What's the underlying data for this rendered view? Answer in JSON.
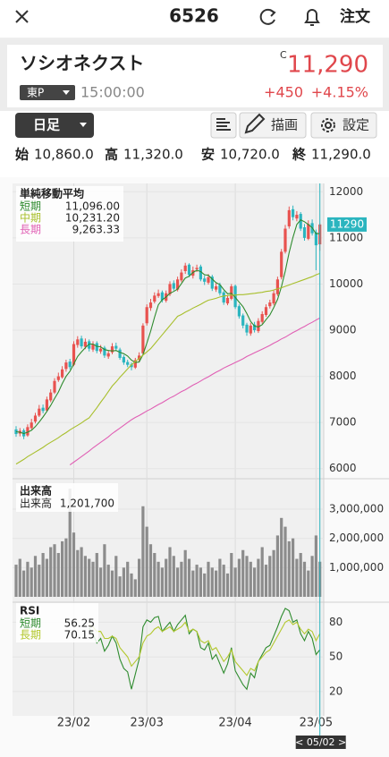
{
  "header": {
    "title": "6526",
    "order": "注文"
  },
  "quote": {
    "name": "ソシオネクスト",
    "flag": "C",
    "price": "11,290",
    "market": "東P",
    "time": "15:00:00",
    "change": "+450",
    "change_pct": "+4.15%"
  },
  "toolbar": {
    "period": "日足",
    "draw": "描画",
    "settings": "設定"
  },
  "ohlc": [
    {
      "label": "始",
      "value": "10,860.0"
    },
    {
      "label": "高",
      "value": "11,320.0"
    },
    {
      "label": "安",
      "value": "10,720.0"
    },
    {
      "label": "終",
      "value": "11,290.0"
    }
  ],
  "chart_data": [
    {
      "type": "candlestick",
      "title": "単純移動平均",
      "cursor_label": "< 05/02 >",
      "up_color": "#e8524f",
      "down_color": "#2bb5bf",
      "marker_color": "#2bb5bf",
      "categories": [
        null,
        null,
        null,
        null,
        null,
        null,
        null,
        null,
        null,
        null,
        null,
        null,
        null,
        null,
        null,
        "23/02",
        null,
        null,
        null,
        null,
        null,
        null,
        null,
        null,
        null,
        null,
        null,
        null,
        null,
        null,
        null,
        null,
        null,
        null,
        "23/03",
        null,
        null,
        null,
        null,
        null,
        null,
        null,
        null,
        null,
        null,
        null,
        null,
        null,
        null,
        null,
        null,
        null,
        null,
        null,
        null,
        null,
        null,
        "23/04",
        null,
        null,
        null,
        null,
        null,
        null,
        null,
        null,
        null,
        null,
        null,
        null,
        null,
        null,
        null,
        null,
        null,
        null,
        null,
        null,
        "23/05",
        null
      ],
      "open": [
        6850,
        6760,
        6830,
        6720,
        6880,
        7020,
        7150,
        7320,
        7260,
        7480,
        7650,
        7920,
        7980,
        8160,
        8320,
        8250,
        8680,
        8820,
        8640,
        8760,
        8580,
        8720,
        8540,
        8620,
        8430,
        8520,
        8660,
        8580,
        8420,
        8310,
        8260,
        8190,
        8360,
        8500,
        9150,
        9480,
        9620,
        9740,
        9820,
        9640,
        9780,
        10020,
        9880,
        10080,
        10280,
        10420,
        10180,
        10320,
        10380,
        10120,
        10030,
        10160,
        9880,
        9980,
        9820,
        9580,
        9680,
        9960,
        9520,
        9320,
        9120,
        8930,
        9120,
        8980,
        9180,
        9330,
        9520,
        9580,
        9780,
        10150,
        10700,
        11250,
        11620,
        11420,
        11520,
        11230,
        10980,
        11320,
        11120,
        10860
      ],
      "high": [
        6920,
        6880,
        6870,
        6960,
        7080,
        7210,
        7380,
        7390,
        7560,
        7720,
        7960,
        8080,
        8220,
        8360,
        8380,
        8760,
        8870,
        8880,
        8820,
        8800,
        8760,
        8760,
        8680,
        8660,
        8570,
        8720,
        8730,
        8620,
        8460,
        8360,
        8300,
        8400,
        8520,
        9150,
        9560,
        9680,
        9820,
        9880,
        9860,
        9860,
        10060,
        10080,
        10160,
        10320,
        10460,
        10450,
        10380,
        10420,
        10420,
        10180,
        10220,
        10200,
        10020,
        10030,
        9850,
        9760,
        10000,
        9990,
        9560,
        9360,
        9160,
        9160,
        9180,
        9260,
        9410,
        9560,
        9660,
        9860,
        10160,
        10760,
        11280,
        11680,
        11700,
        11580,
        11560,
        11300,
        11380,
        11400,
        11180,
        11320
      ],
      "low": [
        6690,
        6700,
        6640,
        6690,
        6850,
        6980,
        7120,
        7200,
        7230,
        7440,
        7620,
        7880,
        7950,
        8100,
        8150,
        8220,
        8620,
        8600,
        8590,
        8540,
        8530,
        8500,
        8490,
        8400,
        8380,
        8480,
        8550,
        8360,
        8250,
        8200,
        8130,
        8160,
        8320,
        8480,
        9100,
        9420,
        9580,
        9700,
        9600,
        9600,
        9740,
        9860,
        9840,
        10040,
        10220,
        10150,
        10120,
        10260,
        10060,
        9980,
        9990,
        9850,
        9830,
        9750,
        9550,
        9540,
        9650,
        9460,
        9250,
        9040,
        8880,
        8880,
        8950,
        8940,
        9140,
        9290,
        9470,
        9540,
        9740,
        10100,
        10660,
        11200,
        11380,
        11360,
        11150,
        10940,
        10950,
        11050,
        10300,
        10720
      ],
      "close": [
        6750,
        6820,
        6700,
        6900,
        7000,
        7150,
        7300,
        7250,
        7500,
        7650,
        7900,
        8000,
        8150,
        8300,
        8200,
        8700,
        8800,
        8650,
        8750,
        8600,
        8700,
        8550,
        8600,
        8450,
        8500,
        8650,
        8600,
        8400,
        8300,
        8250,
        8200,
        8350,
        8450,
        9100,
        9500,
        9600,
        9750,
        9800,
        9650,
        9800,
        10000,
        9900,
        10100,
        10250,
        10400,
        10200,
        10300,
        10350,
        10100,
        10050,
        10150,
        9900,
        9950,
        9800,
        9600,
        9700,
        9950,
        9500,
        9300,
        9100,
        8950,
        9100,
        9000,
        9200,
        9350,
        9500,
        9600,
        9800,
        10100,
        10700,
        11200,
        11600,
        11450,
        11500,
        11200,
        11000,
        11300,
        11100,
        10840,
        11290
      ],
      "series": [
        {
          "name": "短期",
          "color": "#2e8b2e",
          "legend_label": "11,096.00",
          "values": [
            6800,
            6790,
            6760,
            6790,
            6830,
            6910,
            7010,
            7120,
            7240,
            7370,
            7520,
            7660,
            7840,
            8000,
            8110,
            8270,
            8430,
            8530,
            8620,
            8700,
            8700,
            8650,
            8640,
            8580,
            8560,
            8550,
            8560,
            8520,
            8490,
            8440,
            8350,
            8300,
            8310,
            8470,
            8720,
            8980,
            9280,
            9550,
            9660,
            9720,
            9800,
            9840,
            9890,
            10010,
            10130,
            10170,
            10250,
            10300,
            10270,
            10200,
            10190,
            10110,
            10030,
            9990,
            9880,
            9790,
            9800,
            9710,
            9610,
            9510,
            9360,
            9190,
            9090,
            9070,
            9120,
            9230,
            9330,
            9490,
            9670,
            9940,
            10280,
            10680,
            11010,
            11290,
            11390,
            11350,
            11290,
            11220,
            11090,
            11096
          ]
        },
        {
          "name": "中期",
          "color": "#a8bf2c",
          "legend_label": "10,231.20",
          "values": [
            6100,
            6150,
            6200,
            6260,
            6310,
            6360,
            6410,
            6460,
            6520,
            6570,
            6620,
            6670,
            6730,
            6780,
            6840,
            6890,
            6940,
            6990,
            7050,
            7100,
            7210,
            7320,
            7440,
            7550,
            7670,
            7790,
            7880,
            7980,
            8070,
            8160,
            8250,
            8320,
            8390,
            8460,
            8530,
            8600,
            8700,
            8800,
            8900,
            9000,
            9100,
            9200,
            9300,
            9340,
            9390,
            9430,
            9480,
            9520,
            9560,
            9610,
            9650,
            9670,
            9690,
            9720,
            9740,
            9750,
            9760,
            9760,
            9770,
            9770,
            9780,
            9790,
            9800,
            9810,
            9820,
            9840,
            9850,
            9870,
            9900,
            9920,
            9950,
            9980,
            10010,
            10040,
            10070,
            10100,
            10130,
            10160,
            10200,
            10231.2
          ]
        },
        {
          "name": "長期",
          "color": "#e05fb4",
          "legend_label": "9,263.33",
          "values": [
            null,
            null,
            null,
            null,
            null,
            null,
            null,
            null,
            null,
            null,
            null,
            null,
            null,
            null,
            6080,
            6140,
            6200,
            6260,
            6320,
            6380,
            6450,
            6510,
            6570,
            6630,
            6690,
            6760,
            6820,
            6880,
            6940,
            7000,
            7060,
            7110,
            7150,
            7200,
            7250,
            7290,
            7340,
            7390,
            7430,
            7480,
            7530,
            7570,
            7620,
            7670,
            7710,
            7760,
            7810,
            7850,
            7900,
            7950,
            7990,
            8040,
            8090,
            8130,
            8180,
            8220,
            8260,
            8300,
            8340,
            8380,
            8430,
            8470,
            8510,
            8550,
            8590,
            8630,
            8670,
            8720,
            8760,
            8810,
            8850,
            8900,
            8950,
            8990,
            9040,
            9080,
            9130,
            9170,
            9220,
            9263.33
          ]
        }
      ],
      "ylim": [
        5840,
        12180
      ],
      "yticks": [
        6000,
        7000,
        8000,
        9000,
        10000,
        11000,
        12000
      ]
    },
    {
      "type": "bar",
      "title": "出来高",
      "series": [
        {
          "name": "出来高",
          "color": "#8c8c8c",
          "legend_label": "1,201,700",
          "values": [
            1100000,
            1300000,
            900000,
            1200000,
            1000000,
            1400000,
            1100000,
            1500000,
            1300000,
            1700000,
            1800000,
            1500000,
            1900000,
            2000000,
            3700000,
            2200000,
            1600000,
            1700000,
            1400000,
            1300000,
            1200000,
            1500000,
            1000000,
            1800000,
            1100000,
            900000,
            1400000,
            700000,
            1000000,
            1200000,
            800000,
            600000,
            1300000,
            3100000,
            2400000,
            1800000,
            1500000,
            1200000,
            1000000,
            1300000,
            1700000,
            1400000,
            1000000,
            1200000,
            1600000,
            1300000,
            900000,
            1100000,
            1000000,
            800000,
            1200000,
            1000000,
            900000,
            1300000,
            1100000,
            800000,
            1500000,
            1000000,
            1300000,
            1600000,
            1400000,
            1200000,
            1000000,
            1300000,
            1700000,
            1100000,
            1400000,
            1600000,
            2100000,
            2700000,
            2400000,
            1900000,
            2000000,
            1300000,
            1500000,
            1200000,
            900000,
            1400000,
            2100000,
            1201700
          ]
        }
      ],
      "ylim": [
        0,
        3950000
      ],
      "yticks": [
        {
          "value": 1000000,
          "label": "1,000,000"
        },
        {
          "value": 2000000,
          "label": "2,000,000"
        },
        {
          "value": 3000000,
          "label": "3,000,000"
        }
      ]
    },
    {
      "type": "line",
      "title": "RSI",
      "series": [
        {
          "name": "短期",
          "color": "#2e8b2e",
          "values": [
            null,
            null,
            null,
            null,
            null,
            null,
            null,
            null,
            null,
            null,
            null,
            null,
            null,
            null,
            null,
            null,
            null,
            null,
            null,
            75,
            70,
            62,
            66,
            55,
            60,
            68,
            62,
            48,
            40,
            37,
            22,
            35,
            48,
            76,
            82,
            80,
            84,
            85,
            72,
            76,
            80,
            72,
            78,
            82,
            86,
            70,
            74,
            72,
            58,
            56,
            62,
            48,
            52,
            44,
            36,
            44,
            58,
            38,
            32,
            26,
            22,
            36,
            32,
            46,
            52,
            58,
            60,
            68,
            76,
            85,
            92,
            90,
            80,
            82,
            70,
            64,
            72,
            66,
            52,
            56.25
          ]
        },
        {
          "name": "長期",
          "color": "#b3c82e",
          "values": [
            null,
            null,
            null,
            null,
            null,
            null,
            null,
            null,
            null,
            null,
            null,
            null,
            null,
            null,
            null,
            null,
            null,
            null,
            null,
            78,
            76,
            72,
            72,
            66,
            66,
            68,
            66,
            58,
            54,
            50,
            42,
            46,
            50,
            62,
            68,
            70,
            74,
            76,
            72,
            74,
            76,
            72,
            74,
            76,
            80,
            72,
            74,
            72,
            64,
            62,
            64,
            56,
            58,
            52,
            46,
            50,
            56,
            46,
            42,
            38,
            34,
            40,
            38,
            46,
            50,
            54,
            56,
            62,
            68,
            74,
            80,
            82,
            78,
            80,
            74,
            70,
            74,
            72,
            64,
            70.15
          ]
        }
      ],
      "ylim": [
        -1,
        95
      ],
      "yticks": [
        20,
        50,
        80
      ]
    }
  ]
}
